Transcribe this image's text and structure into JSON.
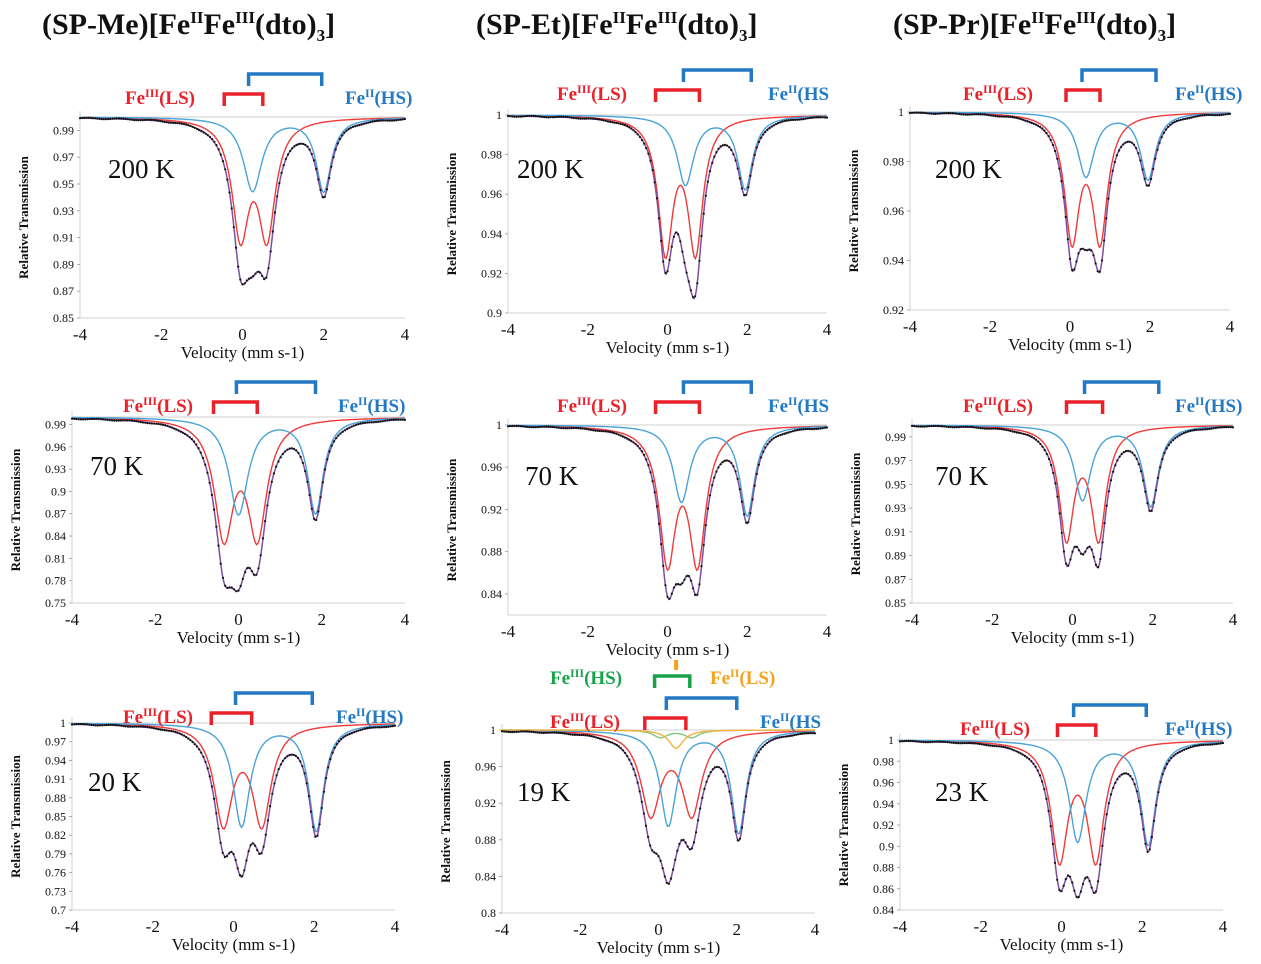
{
  "column_titles": [
    {
      "prefix": "(SP-Me)[Fe",
      "sup1": "II",
      "mid": "Fe",
      "sup2": "III",
      "after": "(dto)",
      "sub": "3",
      "end": "]"
    },
    {
      "prefix": "(SP-Et)[Fe",
      "sup1": "II",
      "mid": "Fe",
      "sup2": "III",
      "after": "(dto)",
      "sub": "3",
      "end": "]"
    },
    {
      "prefix": "(SP-Pr)[Fe",
      "sup1": "II",
      "mid": "Fe",
      "sup2": "III",
      "after": "(dto)",
      "sub": "3",
      "end": "]"
    }
  ],
  "colors": {
    "fe3_ls": "#e8212a",
    "fe2_hs": "#2379c3",
    "fe3_hs": "#1aa24a",
    "fe2_ls": "#f2a21b",
    "sum_fit": "#7d4f9e",
    "fe2_hs_curve": "#4aa3d8",
    "fe3_ls_curve": "#ee3a3a",
    "fe3_hs_curve": "#7fc97f",
    "fe2_ls_curve": "#f5b041",
    "data_points": "#111111"
  },
  "chart_data": [
    {
      "type": "scatter",
      "id": "me-200",
      "temperature": "200 K",
      "xlabel": "Velocity (mm s-1)",
      "ylabel": "Relative Transmission",
      "xlim": [
        -4,
        4
      ],
      "ylim": [
        0.85,
        1.0
      ],
      "xticks": [
        "-4",
        "-2",
        "0",
        "2",
        "4"
      ],
      "yticks": [
        "0.85",
        "0.87",
        "0.89",
        "0.91",
        "0.93",
        "0.95",
        "0.97",
        "0.99"
      ],
      "legend": {
        "fe3_ls": "Fe(III)(LS)",
        "fe2_hs": "Fe(II)(HS)"
      },
      "components": [
        {
          "name": "Fe(III)(LS)",
          "color": "fe3_ls_curve",
          "peaks": [
            {
              "c": -0.05,
              "w": 0.5,
              "d": 0.085
            },
            {
              "c": 0.6,
              "w": 0.5,
              "d": 0.085
            }
          ]
        },
        {
          "name": "Fe(II)(HS)",
          "color": "fe2_hs_curve",
          "peaks": [
            {
              "c": 0.25,
              "w": 0.55,
              "d": 0.055
            },
            {
              "c": 2.0,
              "w": 0.45,
              "d": 0.055
            }
          ]
        }
      ],
      "minima": [
        {
          "x": 0.0,
          "y": 0.898
        },
        {
          "x": 0.55,
          "y": 0.891
        },
        {
          "x": 2.0,
          "y": 0.944
        }
      ],
      "doublets": {
        "fe3_ls": [
          -0.45,
          0.5
        ],
        "fe2_hs": [
          0.15,
          1.95
        ]
      }
    },
    {
      "type": "scatter",
      "id": "et-200",
      "temperature": "200 K",
      "xlabel": "Velocity (mm s-1)",
      "ylabel": "Relative Transmission",
      "xlim": [
        -4,
        4
      ],
      "ylim": [
        0.9,
        1.0
      ],
      "xticks": [
        "-4",
        "-2",
        "0",
        "2",
        "4"
      ],
      "yticks": [
        "0.9",
        "0.92",
        "0.94",
        "0.96",
        "0.98",
        "1"
      ],
      "legend": {
        "fe3_ls": "Fe(III)(LS)",
        "fe2_hs": "Fe(II)(HS"
      },
      "components": [
        {
          "name": "Fe(III)(LS)",
          "color": "fe3_ls_curve",
          "peaks": [
            {
              "c": -0.05,
              "w": 0.45,
              "d": 0.067
            },
            {
              "c": 0.7,
              "w": 0.45,
              "d": 0.067
            }
          ]
        },
        {
          "name": "Fe(II)(HS)",
          "color": "fe2_hs_curve",
          "peaks": [
            {
              "c": 0.45,
              "w": 0.5,
              "d": 0.035
            },
            {
              "c": 1.95,
              "w": 0.45,
              "d": 0.037
            }
          ]
        }
      ],
      "minima": [
        {
          "x": 0.0,
          "y": 0.923
        },
        {
          "x": 0.65,
          "y": 0.911
        },
        {
          "x": 1.95,
          "y": 0.963
        }
      ],
      "doublets": {
        "fe3_ls": [
          -0.3,
          0.8
        ],
        "fe2_hs": [
          0.4,
          2.1
        ]
      }
    },
    {
      "type": "scatter",
      "id": "pr-200",
      "temperature": "200 K",
      "xlabel": "Velocity (mm s-1)",
      "ylabel": "Relative Transmission",
      "xlim": [
        -4,
        4
      ],
      "ylim": [
        0.92,
        1.0
      ],
      "xticks": [
        "-4",
        "-2",
        "0",
        "2",
        "4"
      ],
      "yticks": [
        "0.92",
        "0.94",
        "0.96",
        "0.98",
        "1"
      ],
      "legend": {
        "fe3_ls": "Fe(III)(LS)",
        "fe2_hs": "Fe(II)(HS)"
      },
      "components": [
        {
          "name": "Fe(III)(LS)",
          "color": "fe3_ls_curve",
          "peaks": [
            {
              "c": 0.05,
              "w": 0.45,
              "d": 0.05
            },
            {
              "c": 0.75,
              "w": 0.45,
              "d": 0.05
            }
          ]
        },
        {
          "name": "Fe(II)(HS)",
          "color": "fe2_hs_curve",
          "peaks": [
            {
              "c": 0.4,
              "w": 0.5,
              "d": 0.026
            },
            {
              "c": 1.95,
              "w": 0.45,
              "d": 0.027
            }
          ]
        }
      ],
      "minima": [
        {
          "x": 0.1,
          "y": 0.944
        },
        {
          "x": 0.65,
          "y": 0.936
        },
        {
          "x": 1.95,
          "y": 0.973
        }
      ],
      "doublets": {
        "fe3_ls": [
          -0.1,
          0.75
        ],
        "fe2_hs": [
          0.3,
          2.15
        ]
      }
    },
    {
      "type": "scatter",
      "id": "me-70",
      "temperature": "70 K",
      "xlabel": "Velocity (mm s-1)",
      "ylabel": "Relative Transmission",
      "xlim": [
        -4,
        4
      ],
      "ylim": [
        0.75,
        1.0
      ],
      "xticks": [
        "-4",
        "-2",
        "0",
        "2",
        "4"
      ],
      "yticks": [
        "0.75",
        "0.78",
        "0.81",
        "0.84",
        "0.87",
        "0.9",
        "0.93",
        "0.96",
        "0.99"
      ],
      "legend": {
        "fe3_ls": "Fe(III)(LS)",
        "fe2_hs": "Fe(II)(HS)"
      },
      "components": [
        {
          "name": "Fe(III)(LS)",
          "color": "fe3_ls_curve",
          "peaks": [
            {
              "c": -0.35,
              "w": 0.55,
              "d": 0.155
            },
            {
              "c": 0.45,
              "w": 0.55,
              "d": 0.155
            }
          ]
        },
        {
          "name": "Fe(II)(HS)",
          "color": "fe2_hs_curve",
          "peaks": [
            {
              "c": 0.0,
              "w": 0.55,
              "d": 0.13
            },
            {
              "c": 1.85,
              "w": 0.45,
              "d": 0.128
            }
          ]
        }
      ],
      "minima": [
        {
          "x": -0.3,
          "y": 0.807
        },
        {
          "x": 0.5,
          "y": 0.822
        },
        {
          "x": 1.85,
          "y": 0.87
        }
      ],
      "doublets": {
        "fe3_ls": [
          -0.6,
          0.45
        ],
        "fe2_hs": [
          -0.05,
          1.85
        ]
      }
    },
    {
      "type": "scatter",
      "id": "et-70",
      "temperature": "70 K",
      "xlabel": "Velocity (mm s-1)",
      "ylabel": "Relative Transmission",
      "xlim": [
        -4,
        4
      ],
      "ylim": [
        0.82,
        1.0
      ],
      "xticks": [
        "-4",
        "-2",
        "0",
        "2",
        "4"
      ],
      "yticks": [
        "0.84",
        "0.88",
        "0.92",
        "0.96",
        "1"
      ],
      "legend": {
        "fe3_ls": "Fe(III)(LS)",
        "fe2_hs": "Fe(II)(HS"
      },
      "components": [
        {
          "name": "Fe(III)(LS)",
          "color": "fe3_ls_curve",
          "peaks": [
            {
              "c": 0.0,
              "w": 0.5,
              "d": 0.125
            },
            {
              "c": 0.75,
              "w": 0.5,
              "d": 0.125
            }
          ]
        },
        {
          "name": "Fe(II)(HS)",
          "color": "fe2_hs_curve",
          "peaks": [
            {
              "c": 0.35,
              "w": 0.5,
              "d": 0.072
            },
            {
              "c": 2.0,
              "w": 0.45,
              "d": 0.085
            }
          ]
        }
      ],
      "minima": [
        {
          "x": 0.05,
          "y": 0.845
        },
        {
          "x": 0.7,
          "y": 0.845
        },
        {
          "x": 2.0,
          "y": 0.912
        }
      ],
      "doublets": {
        "fe3_ls": [
          -0.3,
          0.8
        ],
        "fe2_hs": [
          0.4,
          2.1
        ]
      }
    },
    {
      "type": "scatter",
      "id": "pr-70",
      "temperature": "70 K",
      "xlabel": "Velocity (mm s-1)",
      "ylabel": "Relative Transmission",
      "xlim": [
        -4,
        4
      ],
      "ylim": [
        0.85,
        1.0
      ],
      "xticks": [
        "-4",
        "-2",
        "0",
        "2",
        "4"
      ],
      "yticks": [
        "0.85",
        "0.87",
        "0.89",
        "0.91",
        "0.93",
        "0.95",
        "0.97",
        "0.99"
      ],
      "legend": {
        "fe3_ls": "Fe(III)(LS)",
        "fe2_hs": "Fe(II)(HS)"
      },
      "components": [
        {
          "name": "Fe(III)(LS)",
          "color": "fe3_ls_curve",
          "peaks": [
            {
              "c": -0.15,
              "w": 0.45,
              "d": 0.093
            },
            {
              "c": 0.65,
              "w": 0.45,
              "d": 0.093
            }
          ]
        },
        {
          "name": "Fe(II)(HS)",
          "color": "fe2_hs_curve",
          "peaks": [
            {
              "c": 0.25,
              "w": 0.5,
              "d": 0.063
            },
            {
              "c": 1.95,
              "w": 0.45,
              "d": 0.068
            }
          ]
        }
      ],
      "minima": [
        {
          "x": -0.1,
          "y": 0.886
        },
        {
          "x": 0.6,
          "y": 0.889
        },
        {
          "x": 1.95,
          "y": 0.931
        }
      ],
      "doublets": {
        "fe3_ls": [
          -0.15,
          0.75
        ],
        "fe2_hs": [
          0.3,
          2.15
        ]
      }
    },
    {
      "type": "scatter",
      "id": "me-20",
      "temperature": "20 K",
      "xlabel": "Velocity (mm s-1)",
      "ylabel": "Relative Transmission",
      "xlim": [
        -4,
        4
      ],
      "ylim": [
        0.7,
        1.0
      ],
      "xticks": [
        "-4",
        "-2",
        "0",
        "2",
        "4"
      ],
      "yticks": [
        "0.7",
        "0.73",
        "0.76",
        "0.79",
        "0.82",
        "0.85",
        "0.88",
        "0.91",
        "0.94",
        "0.97",
        "1"
      ],
      "legend": {
        "fe3_ls": "Fe(III)(LS)",
        "fe2_hs": "Fe(II)(HS)"
      },
      "components": [
        {
          "name": "Fe(III)(LS)",
          "color": "fe3_ls_curve",
          "peaks": [
            {
              "c": -0.25,
              "w": 0.55,
              "d": 0.158
            },
            {
              "c": 0.7,
              "w": 0.55,
              "d": 0.158
            }
          ]
        },
        {
          "name": "Fe(II)(HS)",
          "color": "fe2_hs_curve",
          "peaks": [
            {
              "c": 0.2,
              "w": 0.5,
              "d": 0.165
            },
            {
              "c": 2.05,
              "w": 0.45,
              "d": 0.172
            }
          ]
        }
      ],
      "minima": [
        {
          "x": -0.25,
          "y": 0.807
        },
        {
          "x": 0.2,
          "y": 0.76
        },
        {
          "x": 0.7,
          "y": 0.803
        },
        {
          "x": 2.05,
          "y": 0.828
        }
      ],
      "doublets": {
        "fe3_ls": [
          -0.55,
          0.45
        ],
        "fe2_hs": [
          0.05,
          1.95
        ]
      }
    },
    {
      "type": "scatter",
      "id": "et-19",
      "temperature": "19 K",
      "xlabel": "Velocity (mm s-1)",
      "ylabel": "Relative Transmission",
      "xlim": [
        -4,
        4
      ],
      "ylim": [
        0.8,
        1.0
      ],
      "xticks": [
        "-4",
        "-2",
        "0",
        "2",
        "4"
      ],
      "yticks": [
        "0.8",
        "0.84",
        "0.88",
        "0.92",
        "0.96",
        "1"
      ],
      "legend": {
        "fe3_ls": "Fe(III)(LS)",
        "fe2_hs": "Fe(II)(HS",
        "fe3_hs": "Fe(III)(HS)",
        "fe2_ls": "Fe(II)(LS)"
      },
      "components": [
        {
          "name": "Fe(III)(LS)",
          "color": "fe3_ls_curve",
          "peaks": [
            {
              "c": -0.2,
              "w": 0.6,
              "d": 0.09
            },
            {
              "c": 0.85,
              "w": 0.6,
              "d": 0.09
            }
          ]
        },
        {
          "name": "Fe(II)(HS)",
          "color": "fe2_hs_curve",
          "peaks": [
            {
              "c": 0.25,
              "w": 0.5,
              "d": 0.104
            },
            {
              "c": 2.05,
              "w": 0.45,
              "d": 0.112
            }
          ]
        },
        {
          "name": "Fe(III)(HS)",
          "color": "fe3_hs_curve",
          "peaks": [
            {
              "c": 0.05,
              "w": 0.45,
              "d": 0.008
            },
            {
              "c": 0.85,
              "w": 0.45,
              "d": 0.008
            }
          ]
        },
        {
          "name": "Fe(II)(LS)",
          "color": "fe2_ls_curve",
          "peaks": [
            {
              "c": 0.45,
              "w": 0.45,
              "d": 0.02
            }
          ]
        }
      ],
      "minima": [
        {
          "x": 0.25,
          "y": 0.82
        },
        {
          "x": 2.05,
          "y": 0.887
        }
      ],
      "doublets": {
        "fe3_ls": [
          -0.35,
          0.7
        ],
        "fe2_hs": [
          0.2,
          2.0
        ],
        "fe3_hs": [
          -0.1,
          0.8
        ],
        "fe2_ls": [
          0.45,
          0.45
        ]
      }
    },
    {
      "type": "scatter",
      "id": "pr-23",
      "temperature": "23 K",
      "xlabel": "Velocity (mm s-1)",
      "ylabel": "Relative Transmission",
      "xlim": [
        -4,
        4
      ],
      "ylim": [
        0.84,
        1.0
      ],
      "xticks": [
        "-4",
        "-2",
        "0",
        "2",
        "4"
      ],
      "yticks": [
        "0.84",
        "0.86",
        "0.88",
        "0.9",
        "0.92",
        "0.94",
        "0.96",
        "0.98",
        "1"
      ],
      "legend": {
        "fe3_ls": "Fe(III)(LS)",
        "fe2_hs": "Fe(II)(HS)"
      },
      "components": [
        {
          "name": "Fe(III)(LS)",
          "color": "fe3_ls_curve",
          "peaks": [
            {
              "c": -0.05,
              "w": 0.5,
              "d": 0.11
            },
            {
              "c": 0.85,
              "w": 0.5,
              "d": 0.11
            }
          ]
        },
        {
          "name": "Fe(II)(HS)",
          "color": "fe2_hs_curve",
          "peaks": [
            {
              "c": 0.4,
              "w": 0.5,
              "d": 0.095
            },
            {
              "c": 2.15,
              "w": 0.45,
              "d": 0.098
            }
          ]
        }
      ],
      "minima": [
        {
          "x": 0.05,
          "y": 0.868
        },
        {
          "x": 0.4,
          "y": 0.858
        },
        {
          "x": 0.8,
          "y": 0.868
        },
        {
          "x": 2.15,
          "y": 0.901
        }
      ],
      "doublets": {
        "fe3_ls": [
          -0.1,
          0.85
        ],
        "fe2_hs": [
          0.3,
          2.1
        ]
      }
    }
  ]
}
